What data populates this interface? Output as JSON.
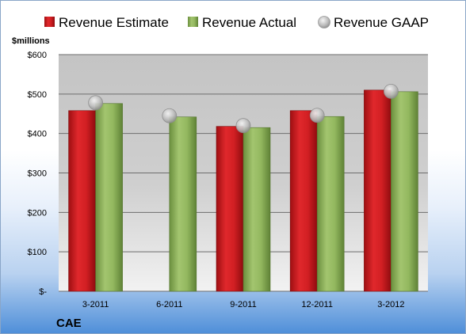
{
  "ticker": "CAE",
  "colors": {
    "estimate": "#c9191e",
    "actual": "#8cb05a",
    "gaap": "#b8b8b8"
  },
  "chart_data": {
    "type": "bar",
    "unit_label": "$millions",
    "categories": [
      "3-2011",
      "6-2011",
      "9-2011",
      "12-2011",
      "3-2012"
    ],
    "series": [
      {
        "name": "Revenue Estimate",
        "kind": "bar",
        "values": [
          458,
          null,
          418,
          458,
          510
        ]
      },
      {
        "name": "Revenue Actual",
        "kind": "bar",
        "values": [
          476,
          442,
          415,
          443,
          506
        ]
      },
      {
        "name": "Revenue GAAP",
        "kind": "marker",
        "values": [
          478,
          445,
          420,
          446,
          507
        ]
      }
    ],
    "ylim": [
      0,
      600
    ],
    "yticks": [
      0,
      100,
      200,
      300,
      400,
      500,
      600
    ],
    "ytick_labels": [
      "$-",
      "$100",
      "$200",
      "$300",
      "$400",
      "$500",
      "$600"
    ],
    "grid": true,
    "legend_position": "top"
  }
}
